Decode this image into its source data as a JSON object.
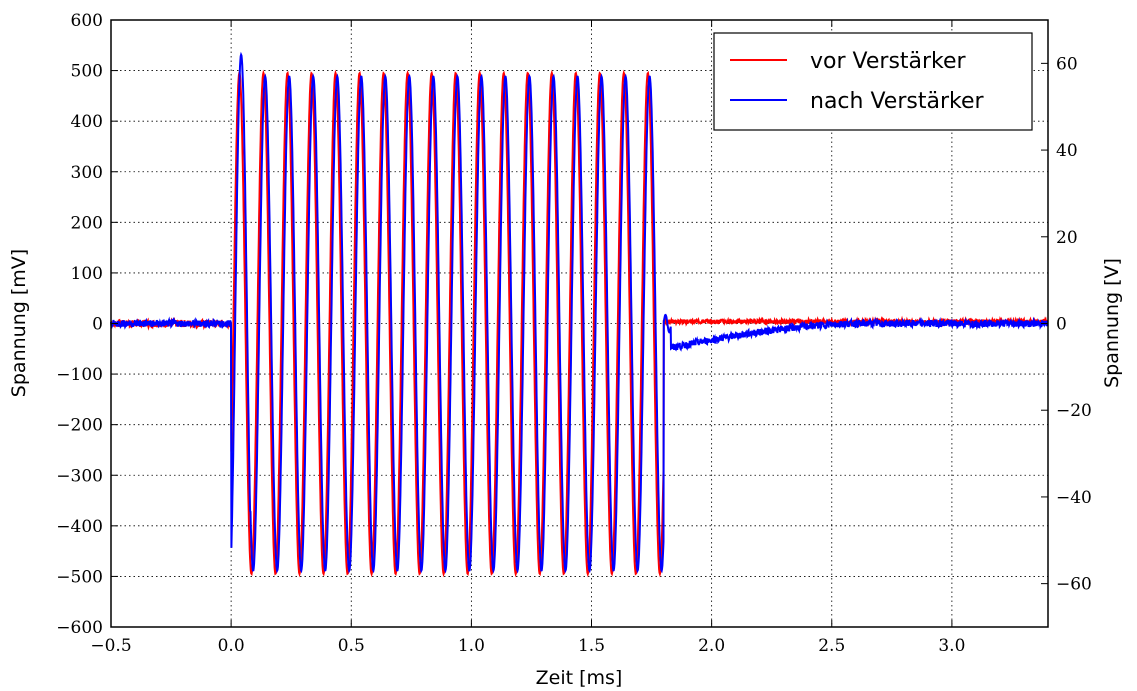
{
  "chart_data": {
    "type": "line",
    "xlabel": "Zeit [ms]",
    "ylabel_left": "Spannung [mV]",
    "ylabel_right": "Spannung [V]",
    "xlim": [
      -0.5,
      3.4
    ],
    "ylim_left": [
      -600,
      600
    ],
    "ylim_right": [
      -70,
      70
    ],
    "xticks": [
      -0.5,
      0.0,
      0.5,
      1.0,
      1.5,
      2.0,
      2.5,
      3.0
    ],
    "xtick_labels": [
      "−0.5",
      "0.0",
      "0.5",
      "1.0",
      "1.5",
      "2.0",
      "2.5",
      "3.0"
    ],
    "yticks_left": [
      -600,
      -500,
      -400,
      -300,
      -200,
      -100,
      0,
      100,
      200,
      300,
      400,
      500,
      600
    ],
    "ytick_labels_left": [
      "−600",
      "−500",
      "−400",
      "−300",
      "−200",
      "−100",
      "0",
      "100",
      "200",
      "300",
      "400",
      "500",
      "600"
    ],
    "yticks_right": [
      -60,
      -40,
      -20,
      0,
      20,
      40,
      60
    ],
    "ytick_labels_right": [
      "−60",
      "−40",
      "−20",
      "0",
      "20",
      "40",
      "60"
    ],
    "grid": true,
    "legend_position": "top-right",
    "series": [
      {
        "name": "vor Verstärker",
        "color": "#ff0000",
        "axis": "left",
        "burst_start_ms": 0.0,
        "burst_end_ms": 1.8,
        "frequency_khz": 10,
        "amplitude_mv": 495,
        "baseline_mv": 0
      },
      {
        "name": "nach Verstärker",
        "color": "#0000ff",
        "axis": "right",
        "burst_start_ms": 0.0,
        "burst_end_ms": 1.8,
        "frequency_khz": 10,
        "amplitude_v": 57,
        "peak_v": 62,
        "after_burst_offset_v": -6,
        "decay_end_ms": 2.6,
        "baseline_v": 0
      }
    ]
  }
}
